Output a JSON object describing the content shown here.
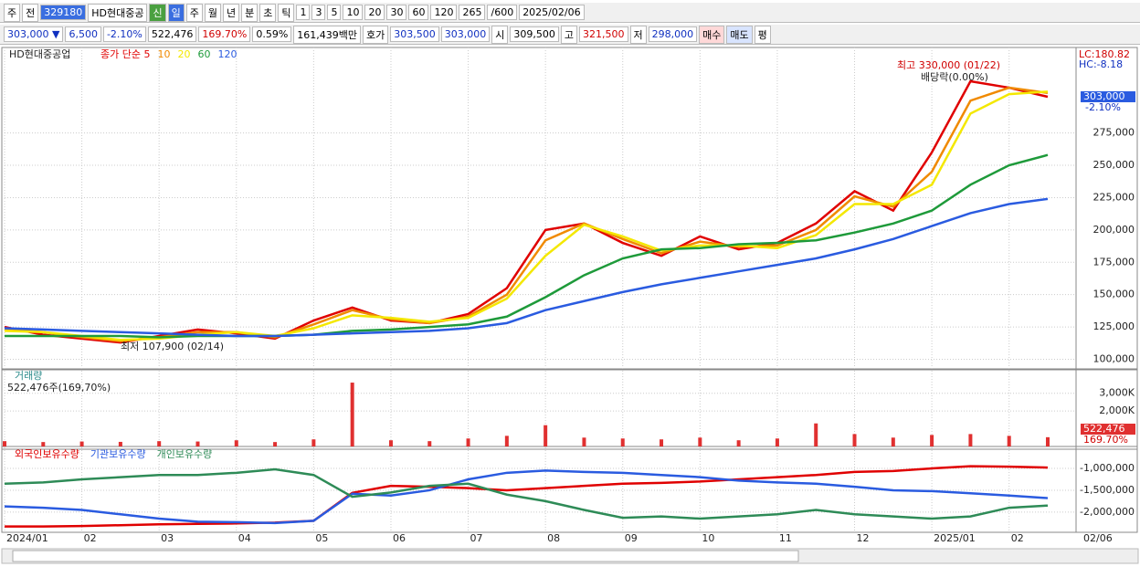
{
  "toolbar": {
    "row1": [
      "주",
      "전",
      "329180",
      "HD현대중공",
      "신",
      "일",
      "주",
      "월",
      "년",
      "분",
      "초",
      "틱",
      "1",
      "3",
      "5",
      "10",
      "20",
      "30",
      "60",
      "120",
      "265",
      "/600",
      "2025/02/06"
    ],
    "row2": [
      "303,000 ▼",
      "6,500",
      "-2.10%",
      "522,476",
      "169.70%",
      "0.59%",
      "161,439백만",
      "호가",
      "303,500",
      "303,000",
      "시",
      "309,500",
      "고",
      "321,500",
      "저",
      "298,000",
      "매수",
      "매도",
      "평"
    ]
  },
  "chart_data": [
    {
      "type": "line",
      "title": "HD현대중공업",
      "legend": true,
      "categories": [
        "2024/01",
        null,
        "02",
        null,
        "03",
        null,
        "04",
        null,
        "05",
        null,
        "06",
        null,
        "07",
        null,
        "08",
        null,
        "09",
        null,
        "10",
        null,
        "11",
        null,
        "12",
        null,
        "2025/01",
        null,
        "02",
        null
      ],
      "cursor_date": "02/06",
      "ylim": [
        94000,
        339000
      ],
      "yticks": [
        {
          "value": 100000,
          "label": "100,000"
        },
        {
          "value": 125000,
          "label": "125,000"
        },
        {
          "value": 150000,
          "label": "150,000"
        },
        {
          "value": 175000,
          "label": "175,000"
        },
        {
          "value": 200000,
          "label": "200,000"
        },
        {
          "value": 225000,
          "label": "225,000"
        },
        {
          "value": 250000,
          "label": "250,000"
        },
        {
          "value": 275000,
          "label": "275,000"
        }
      ],
      "grid": true,
      "series": [
        {
          "name": "종가 단순 5",
          "color": "#e00000",
          "values": [
            125000,
            119000,
            116000,
            113000,
            118000,
            123000,
            120000,
            116000,
            130000,
            140000,
            130000,
            128000,
            135000,
            155000,
            200000,
            205000,
            190000,
            180000,
            195000,
            185000,
            190000,
            205000,
            230000,
            215000,
            260000,
            315000,
            310000,
            303000
          ]
        },
        {
          "name": "10",
          "color": "#f08a00",
          "values": [
            123000,
            121000,
            117000,
            114000,
            117000,
            121000,
            121000,
            117000,
            127000,
            138000,
            131000,
            128000,
            133000,
            150000,
            192000,
            205000,
            193000,
            182000,
            191000,
            187000,
            188000,
            200000,
            226000,
            218000,
            245000,
            300000,
            310000,
            306000
          ]
        },
        {
          "name": "20",
          "color": "#f4e800",
          "values": [
            122000,
            121000,
            118000,
            115000,
            116000,
            119000,
            121000,
            118000,
            124000,
            134000,
            132000,
            129000,
            132000,
            147000,
            180000,
            204000,
            195000,
            184000,
            188000,
            188000,
            186000,
            196000,
            220000,
            220000,
            235000,
            290000,
            305000,
            307000
          ]
        },
        {
          "name": "60",
          "color": "#1e9a3a",
          "values": [
            118000,
            118000,
            118000,
            118000,
            117000,
            118000,
            118000,
            118000,
            119000,
            122000,
            123000,
            125000,
            127000,
            133000,
            148000,
            165000,
            178000,
            185000,
            186000,
            189000,
            190000,
            192000,
            198000,
            205000,
            215000,
            235000,
            250000,
            258000
          ]
        },
        {
          "name": "120",
          "color": "#2a5be0",
          "values": [
            124000,
            123000,
            122000,
            121000,
            120000,
            119000,
            118000,
            118000,
            119000,
            120000,
            121000,
            122000,
            124000,
            128000,
            138000,
            145000,
            152000,
            158000,
            163000,
            168000,
            173000,
            178000,
            185000,
            193000,
            203000,
            213000,
            220000,
            224000
          ]
        }
      ],
      "annotations": {
        "high": "최고 330,000 (01/22)",
        "dividend": "배당락(0.00%)",
        "low": "최저 107,900 (02/14)",
        "lc": "LC:180.82",
        "hc": "HC:-8.18",
        "last_price": "303,000",
        "last_change": "-2.10%"
      }
    },
    {
      "type": "bar",
      "title": "거래량",
      "subtitle": "522,476주(169,70%)",
      "color": "#e03030",
      "ylim": [
        0,
        4220000
      ],
      "yticks": [
        {
          "value": 2000000,
          "label": "2,000K"
        },
        {
          "value": 3000000,
          "label": "3,000K"
        }
      ],
      "values": [
        300000,
        250000,
        280000,
        260000,
        300000,
        280000,
        350000,
        250000,
        400000,
        3600000,
        350000,
        300000,
        450000,
        600000,
        1200000,
        500000,
        450000,
        400000,
        500000,
        350000,
        450000,
        1300000,
        700000,
        500000,
        650000,
        700000,
        600000,
        522476
      ],
      "last_label": "522,476",
      "last_pct": "169.70%"
    },
    {
      "type": "line",
      "ylim": [
        -2400000,
        -560000
      ],
      "yticks": [
        {
          "value": -1000000,
          "label": "-1,000,000"
        },
        {
          "value": -1500000,
          "label": "-1,500,000"
        },
        {
          "value": -2000000,
          "label": "-2,000,000"
        }
      ],
      "series": [
        {
          "name": "외국인보유수량",
          "color": "#e00000",
          "values": [
            -2330000,
            -2330000,
            -2320000,
            -2300000,
            -2280000,
            -2270000,
            -2260000,
            -2240000,
            -2200000,
            -1560000,
            -1400000,
            -1420000,
            -1450000,
            -1500000,
            -1450000,
            -1400000,
            -1350000,
            -1330000,
            -1300000,
            -1250000,
            -1200000,
            -1150000,
            -1080000,
            -1060000,
            -1000000,
            -950000,
            -960000,
            -980000
          ]
        },
        {
          "name": "기관보유수량",
          "color": "#2a5be0",
          "values": [
            -1870000,
            -1900000,
            -1950000,
            -2050000,
            -2150000,
            -2220000,
            -2230000,
            -2250000,
            -2200000,
            -1580000,
            -1620000,
            -1500000,
            -1250000,
            -1100000,
            -1050000,
            -1080000,
            -1100000,
            -1150000,
            -1200000,
            -1280000,
            -1320000,
            -1350000,
            -1420000,
            -1500000,
            -1520000,
            -1570000,
            -1620000,
            -1680000
          ]
        },
        {
          "name": "개인보유수량",
          "color": "#2e8b57",
          "values": [
            -1350000,
            -1320000,
            -1250000,
            -1200000,
            -1150000,
            -1150000,
            -1100000,
            -1020000,
            -1150000,
            -1650000,
            -1550000,
            -1400000,
            -1350000,
            -1600000,
            -1750000,
            -1950000,
            -2130000,
            -2100000,
            -2150000,
            -2100000,
            -2050000,
            -1950000,
            -2050000,
            -2100000,
            -2150000,
            -2100000,
            -1900000,
            -1850000
          ]
        }
      ]
    }
  ]
}
